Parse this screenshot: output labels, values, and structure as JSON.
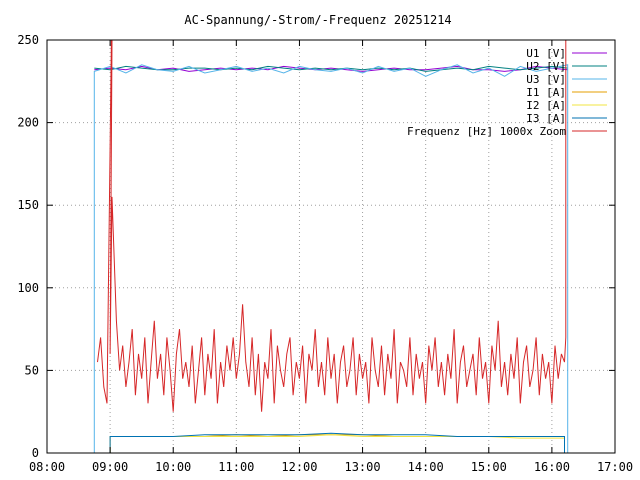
{
  "chart_data": {
    "type": "line",
    "title": "AC-Spannung/-Strom/-Frequenz 20251214",
    "xlabel": "",
    "ylabel": "",
    "xlim": [
      8,
      17
    ],
    "ylim": [
      0,
      250
    ],
    "x_ticks": [
      "08:00",
      "09:00",
      "10:00",
      "11:00",
      "12:00",
      "13:00",
      "14:00",
      "15:00",
      "16:00",
      "17:00"
    ],
    "y_ticks": [
      "0",
      "50",
      "100",
      "150",
      "200",
      "250"
    ],
    "grid": true,
    "legend_position": "top-right",
    "series": [
      {
        "name": "U1 [V]",
        "color": "#9400d3",
        "x": [
          8.75,
          9.0,
          9.25,
          9.5,
          9.75,
          10.0,
          10.25,
          10.5,
          10.75,
          11.0,
          11.25,
          11.5,
          11.75,
          12.0,
          12.25,
          12.5,
          12.75,
          13.0,
          13.25,
          13.5,
          13.75,
          14.0,
          14.25,
          14.5,
          14.75,
          15.0,
          15.25,
          15.5,
          15.75,
          16.0,
          16.25
        ],
        "values": [
          232,
          233,
          232,
          234,
          232,
          233,
          231,
          232,
          233,
          232,
          233,
          232,
          234,
          233,
          232,
          233,
          232,
          231,
          232,
          233,
          232,
          232,
          233,
          234,
          232,
          232,
          231,
          232,
          234,
          233,
          232
        ]
      },
      {
        "name": "U2 [V]",
        "color": "#008080",
        "x": [
          8.75,
          9.0,
          9.25,
          9.5,
          9.75,
          10.0,
          10.25,
          10.5,
          10.75,
          11.0,
          11.25,
          11.5,
          11.75,
          12.0,
          12.25,
          12.5,
          12.75,
          13.0,
          13.25,
          13.5,
          13.75,
          14.0,
          14.25,
          14.5,
          14.75,
          15.0,
          15.25,
          15.5,
          15.75,
          16.0,
          16.25
        ],
        "values": [
          233,
          232,
          234,
          233,
          232,
          232,
          233,
          233,
          232,
          233,
          232,
          234,
          233,
          232,
          233,
          232,
          233,
          232,
          233,
          232,
          233,
          231,
          232,
          233,
          232,
          234,
          233,
          232,
          233,
          234,
          233
        ]
      },
      {
        "name": "U3 [V]",
        "color": "#56b4e9",
        "x": [
          8.75,
          9.0,
          9.25,
          9.5,
          9.75,
          10.0,
          10.25,
          10.5,
          10.75,
          11.0,
          11.25,
          11.5,
          11.75,
          12.0,
          12.25,
          12.5,
          12.75,
          13.0,
          13.25,
          13.5,
          13.75,
          14.0,
          14.25,
          14.5,
          14.75,
          15.0,
          15.25,
          15.5,
          15.75,
          16.0,
          16.25
        ],
        "values": [
          231,
          234,
          230,
          235,
          232,
          231,
          234,
          230,
          232,
          234,
          231,
          233,
          230,
          234,
          232,
          231,
          233,
          230,
          234,
          231,
          233,
          228,
          232,
          235,
          230,
          233,
          228,
          234,
          231,
          233,
          235
        ]
      },
      {
        "name": "I1 [A]",
        "color": "#e69f00",
        "x": [
          9.0,
          9.5,
          10.0,
          10.5,
          11.0,
          11.5,
          12.0,
          12.5,
          13.0,
          13.5,
          14.0,
          14.5,
          15.0,
          15.5,
          16.0,
          16.2
        ],
        "values": [
          10,
          10,
          10,
          10,
          11,
          10,
          11,
          11,
          11,
          10,
          10,
          10,
          10,
          10,
          10,
          10
        ]
      },
      {
        "name": "I2 [A]",
        "color": "#f0e442",
        "x": [
          9.0,
          9.5,
          10.0,
          10.5,
          11.0,
          11.5,
          12.0,
          12.5,
          13.0,
          13.5,
          14.0,
          14.5,
          15.0,
          15.5,
          16.0,
          16.2
        ],
        "values": [
          10,
          10,
          10,
          10,
          10,
          10,
          10,
          11,
          10,
          10,
          10,
          10,
          10,
          9,
          9,
          9
        ]
      },
      {
        "name": "I3 [A]",
        "color": "#0072b2",
        "x": [
          9.0,
          9.5,
          10.0,
          10.5,
          11.0,
          11.5,
          12.0,
          12.5,
          13.0,
          13.5,
          14.0,
          14.5,
          15.0,
          15.5,
          16.0,
          16.2
        ],
        "values": [
          10,
          10,
          10,
          11,
          11,
          11,
          11,
          12,
          11,
          11,
          11,
          10,
          10,
          10,
          10,
          10
        ]
      },
      {
        "name": "Frequenz [Hz] 1000x Zoom",
        "color": "#d62728",
        "x": [
          8.8,
          8.85,
          8.9,
          8.95,
          9.0,
          9.03,
          9.1,
          9.15,
          9.2,
          9.25,
          9.3,
          9.35,
          9.4,
          9.45,
          9.5,
          9.55,
          9.6,
          9.65,
          9.7,
          9.75,
          9.8,
          9.85,
          9.9,
          9.95,
          10.0,
          10.05,
          10.1,
          10.15,
          10.2,
          10.25,
          10.3,
          10.35,
          10.4,
          10.45,
          10.5,
          10.55,
          10.6,
          10.65,
          10.7,
          10.75,
          10.8,
          10.85,
          10.9,
          10.95,
          11.0,
          11.05,
          11.1,
          11.15,
          11.2,
          11.25,
          11.3,
          11.35,
          11.4,
          11.45,
          11.5,
          11.55,
          11.6,
          11.65,
          11.7,
          11.75,
          11.8,
          11.85,
          11.9,
          11.95,
          12.0,
          12.05,
          12.1,
          12.15,
          12.2,
          12.25,
          12.3,
          12.35,
          12.4,
          12.45,
          12.5,
          12.55,
          12.6,
          12.65,
          12.7,
          12.75,
          12.8,
          12.85,
          12.9,
          12.95,
          13.0,
          13.05,
          13.1,
          13.15,
          13.2,
          13.25,
          13.3,
          13.35,
          13.4,
          13.45,
          13.5,
          13.55,
          13.6,
          13.65,
          13.7,
          13.75,
          13.8,
          13.85,
          13.9,
          13.95,
          14.0,
          14.05,
          14.1,
          14.15,
          14.2,
          14.25,
          14.3,
          14.35,
          14.4,
          14.45,
          14.5,
          14.55,
          14.6,
          14.65,
          14.7,
          14.75,
          14.8,
          14.85,
          14.9,
          14.95,
          15.0,
          15.05,
          15.1,
          15.15,
          15.2,
          15.25,
          15.3,
          15.35,
          15.4,
          15.45,
          15.5,
          15.55,
          15.6,
          15.65,
          15.7,
          15.75,
          15.8,
          15.85,
          15.9,
          15.95,
          16.0,
          16.05,
          16.1,
          16.15,
          16.2,
          16.22
        ],
        "values": [
          55,
          70,
          40,
          30,
          60,
          155,
          80,
          50,
          65,
          40,
          55,
          75,
          35,
          60,
          45,
          70,
          30,
          55,
          80,
          45,
          60,
          35,
          70,
          50,
          25,
          60,
          75,
          45,
          55,
          40,
          65,
          30,
          50,
          70,
          35,
          60,
          45,
          75,
          30,
          55,
          40,
          65,
          50,
          70,
          45,
          60,
          90,
          55,
          40,
          70,
          35,
          60,
          25,
          55,
          45,
          75,
          30,
          65,
          50,
          40,
          60,
          70,
          35,
          55,
          45,
          65,
          30,
          60,
          50,
          75,
          40,
          55,
          35,
          70,
          45,
          60,
          30,
          55,
          65,
          40,
          50,
          70,
          35,
          60,
          45,
          55,
          30,
          70,
          50,
          40,
          65,
          35,
          60,
          45,
          75,
          30,
          55,
          50,
          40,
          70,
          35,
          60,
          45,
          55,
          30,
          65,
          50,
          70,
          40,
          55,
          35,
          60,
          45,
          75,
          30,
          55,
          65,
          40,
          50,
          60,
          35,
          70,
          45,
          55,
          30,
          65,
          50,
          80,
          40,
          55,
          35,
          60,
          45,
          70,
          30,
          55,
          65,
          40,
          50,
          70,
          35,
          60,
          45,
          55,
          30,
          65,
          45,
          60,
          55,
          70
        ]
      }
    ]
  }
}
